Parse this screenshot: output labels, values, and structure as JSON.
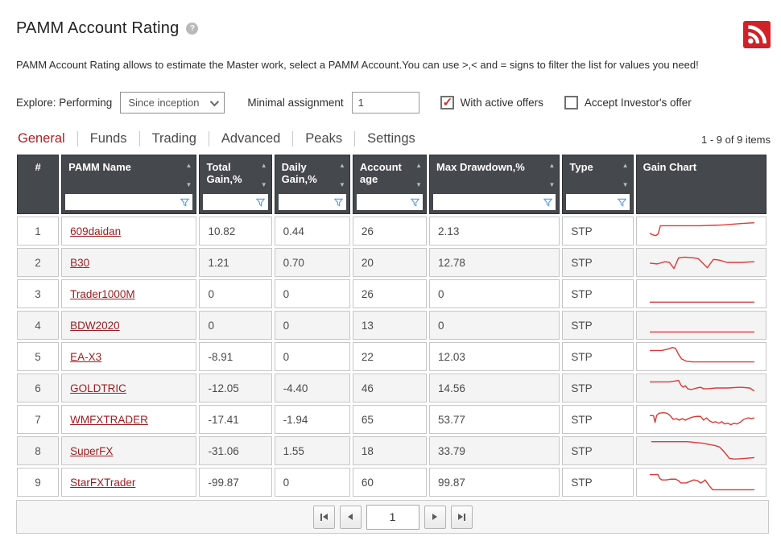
{
  "header": {
    "title": "PAMM Account Rating",
    "help_glyph": "?",
    "description": "PAMM Account Rating allows to estimate the Master work, select a PAMM Account.You can use >,< and = signs to filter the list for values you need!"
  },
  "filters": {
    "explore_label": "Explore: Performing",
    "period_select": "Since inception",
    "minimal_assignment_label": "Minimal assignment",
    "minimal_assignment_value": "1",
    "with_active_offers": {
      "label": "With active offers",
      "checked": true
    },
    "accept_investors_offer": {
      "label": "Accept Investor's offer",
      "checked": false
    }
  },
  "tabs": [
    {
      "label": "General",
      "active": true
    },
    {
      "label": "Funds",
      "active": false
    },
    {
      "label": "Trading",
      "active": false
    },
    {
      "label": "Advanced",
      "active": false
    },
    {
      "label": "Peaks",
      "active": false
    },
    {
      "label": "Settings",
      "active": false
    }
  ],
  "items_count": "1 - 9 of 9 items",
  "table": {
    "columns": [
      {
        "key": "rank",
        "label": "#",
        "sortable": false,
        "filterable": false
      },
      {
        "key": "name",
        "label": "PAMM Name",
        "sortable": true,
        "filterable": true
      },
      {
        "key": "total_gain",
        "label": "Total Gain,%",
        "sortable": true,
        "filterable": true
      },
      {
        "key": "daily_gain",
        "label": "Daily Gain,%",
        "sortable": true,
        "filterable": true
      },
      {
        "key": "account_age",
        "label": "Account age",
        "sortable": true,
        "filterable": true
      },
      {
        "key": "max_drawdown",
        "label": "Max Drawdown,%",
        "sortable": true,
        "filterable": true
      },
      {
        "key": "type",
        "label": "Type",
        "sortable": true,
        "filterable": true
      },
      {
        "key": "gain_chart",
        "label": "Gain Chart",
        "sortable": false,
        "filterable": false
      }
    ],
    "rows": [
      {
        "rank": "1",
        "name": "609daidan",
        "total_gain": "10.82",
        "daily_gain": "0.44",
        "account_age": "26",
        "max_drawdown": "2.13",
        "type": "STP",
        "spark": [
          [
            8,
            20
          ],
          [
            12,
            22
          ],
          [
            16,
            23
          ],
          [
            19,
            21
          ],
          [
            22,
            10
          ],
          [
            45,
            10
          ],
          [
            75,
            10
          ],
          [
            105,
            9
          ],
          [
            130,
            7
          ],
          [
            146,
            6
          ]
        ]
      },
      {
        "rank": "2",
        "name": "B30",
        "total_gain": "1.21",
        "daily_gain": "0.70",
        "account_age": "20",
        "max_drawdown": "12.78",
        "type": "STP",
        "spark": [
          [
            8,
            18
          ],
          [
            18,
            19
          ],
          [
            28,
            16
          ],
          [
            34,
            17
          ],
          [
            40,
            25
          ],
          [
            46,
            11
          ],
          [
            54,
            10
          ],
          [
            66,
            11
          ],
          [
            72,
            12
          ],
          [
            84,
            24
          ],
          [
            92,
            13
          ],
          [
            100,
            14
          ],
          [
            110,
            17
          ],
          [
            128,
            17
          ],
          [
            146,
            16
          ]
        ]
      },
      {
        "rank": "3",
        "name": "Trader1000M",
        "total_gain": "0",
        "daily_gain": "0",
        "account_age": "26",
        "max_drawdown": "0",
        "type": "STP",
        "spark": [
          [
            8,
            28
          ],
          [
            146,
            28
          ]
        ]
      },
      {
        "rank": "4",
        "name": "BDW2020",
        "total_gain": "0",
        "daily_gain": "0",
        "account_age": "13",
        "max_drawdown": "0",
        "type": "STP",
        "spark": [
          [
            8,
            26
          ],
          [
            146,
            26
          ]
        ]
      },
      {
        "rank": "5",
        "name": "EA-X3",
        "total_gain": "-8.91",
        "daily_gain": "0",
        "account_age": "22",
        "max_drawdown": "12.03",
        "type": "STP",
        "spark": [
          [
            8,
            9
          ],
          [
            24,
            9
          ],
          [
            32,
            7
          ],
          [
            38,
            5
          ],
          [
            42,
            6
          ],
          [
            46,
            14
          ],
          [
            50,
            20
          ],
          [
            56,
            23
          ],
          [
            64,
            24
          ],
          [
            80,
            24
          ],
          [
            146,
            24
          ]
        ]
      },
      {
        "rank": "6",
        "name": "GOLDTRIC",
        "total_gain": "-12.05",
        "daily_gain": "-4.40",
        "account_age": "46",
        "max_drawdown": "14.56",
        "type": "STP",
        "spark": [
          [
            8,
            9
          ],
          [
            34,
            9
          ],
          [
            40,
            8
          ],
          [
            46,
            7
          ],
          [
            49,
            13
          ],
          [
            52,
            16
          ],
          [
            55,
            14
          ],
          [
            58,
            18
          ],
          [
            63,
            19
          ],
          [
            70,
            17
          ],
          [
            75,
            16
          ],
          [
            79,
            18
          ],
          [
            85,
            18
          ],
          [
            95,
            17
          ],
          [
            110,
            17
          ],
          [
            128,
            16
          ],
          [
            140,
            17
          ],
          [
            146,
            21
          ]
        ]
      },
      {
        "rank": "7",
        "name": "WMFXTRADER",
        "total_gain": "-17.41",
        "daily_gain": "-1.94",
        "account_age": "65",
        "max_drawdown": "53.77",
        "type": "STP",
        "spark": [
          [
            8,
            12
          ],
          [
            13,
            12
          ],
          [
            15,
            21
          ],
          [
            17,
            12
          ],
          [
            20,
            9
          ],
          [
            26,
            8
          ],
          [
            31,
            9
          ],
          [
            35,
            12
          ],
          [
            39,
            17
          ],
          [
            43,
            16
          ],
          [
            47,
            18
          ],
          [
            51,
            16
          ],
          [
            55,
            18
          ],
          [
            59,
            16
          ],
          [
            64,
            14
          ],
          [
            70,
            13
          ],
          [
            75,
            13
          ],
          [
            79,
            18
          ],
          [
            83,
            15
          ],
          [
            87,
            19
          ],
          [
            91,
            21
          ],
          [
            95,
            20
          ],
          [
            99,
            22
          ],
          [
            103,
            20
          ],
          [
            107,
            23
          ],
          [
            111,
            22
          ],
          [
            115,
            24
          ],
          [
            119,
            22
          ],
          [
            123,
            23
          ],
          [
            127,
            21
          ],
          [
            132,
            17
          ],
          [
            138,
            15
          ],
          [
            142,
            16
          ],
          [
            146,
            15
          ]
        ]
      },
      {
        "rank": "8",
        "name": "SuperFX",
        "total_gain": "-31.06",
        "daily_gain": "1.55",
        "account_age": "18",
        "max_drawdown": "33.79",
        "type": "STP",
        "spark": [
          [
            10,
            5
          ],
          [
            58,
            5
          ],
          [
            68,
            6
          ],
          [
            78,
            7
          ],
          [
            88,
            9
          ],
          [
            94,
            10
          ],
          [
            100,
            12
          ],
          [
            105,
            17
          ],
          [
            110,
            23
          ],
          [
            113,
            27
          ],
          [
            120,
            28
          ],
          [
            134,
            27
          ],
          [
            146,
            26
          ]
        ]
      },
      {
        "rank": "9",
        "name": "StarFXTrader",
        "total_gain": "-99.87",
        "daily_gain": "0",
        "account_age": "60",
        "max_drawdown": "99.87",
        "type": "STP",
        "spark": [
          [
            8,
            7
          ],
          [
            19,
            7
          ],
          [
            21,
            12
          ],
          [
            24,
            14
          ],
          [
            30,
            14
          ],
          [
            36,
            13
          ],
          [
            42,
            13
          ],
          [
            46,
            15
          ],
          [
            49,
            18
          ],
          [
            56,
            18
          ],
          [
            61,
            16
          ],
          [
            66,
            14
          ],
          [
            71,
            15
          ],
          [
            75,
            18
          ],
          [
            79,
            16
          ],
          [
            81,
            14
          ],
          [
            84,
            18
          ],
          [
            86,
            21
          ],
          [
            91,
            27
          ],
          [
            146,
            27
          ]
        ]
      }
    ]
  },
  "pagination": {
    "page": "1"
  },
  "icons": {
    "rss": "rss-icon (white arcs + dot on red square)",
    "help": "question-mark in gray circle",
    "filter": "blue outlined funnel",
    "sort_asc": "triangle-up",
    "sort_desc": "triangle-down",
    "first": "bar + triangle-left",
    "prev": "triangle-left",
    "next": "triangle-right",
    "last": "triangle-right + bar",
    "select_chevron": "chevron-down",
    "checkbox_check": "red checkmark"
  },
  "colors": {
    "accent_red": "#b01e23",
    "link_red": "#9b1b1e",
    "spark_red": "#dc3a35",
    "rss_red": "#cf2127",
    "header_bg": "#45494e",
    "filter_icon_blue": "#5b9bd5",
    "check_red": "#d02b27"
  }
}
